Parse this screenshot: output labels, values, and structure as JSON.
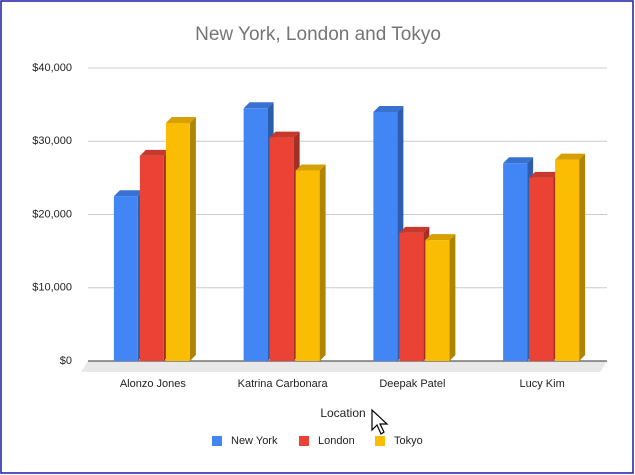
{
  "chart_data": {
    "type": "bar3d",
    "title": "New York, London and Tokyo",
    "x_label": "Location",
    "categories": [
      "Alonzo Jones",
      "Katrina Carbonara",
      "Deepak Patel",
      "Lucy Kim"
    ],
    "series": [
      {
        "name": "New York",
        "color": "#4285f4",
        "values": [
          22500,
          34500,
          34000,
          27000
        ]
      },
      {
        "name": "London",
        "color": "#ea4335",
        "values": [
          28000,
          30500,
          17500,
          25000
        ]
      },
      {
        "name": "Tokyo",
        "color": "#fbbc04",
        "values": [
          32500,
          26000,
          16500,
          27500
        ]
      }
    ],
    "ylim": [
      0,
      40000
    ],
    "yticks": [
      {
        "value": 0,
        "label": "$0"
      },
      {
        "value": 10000,
        "label": "$10,000"
      },
      {
        "value": 20000,
        "label": "$20,000"
      },
      {
        "value": 30000,
        "label": "$30,000"
      },
      {
        "value": 40000,
        "label": "$40,000"
      }
    ],
    "grid": true,
    "legend": "bottom"
  }
}
